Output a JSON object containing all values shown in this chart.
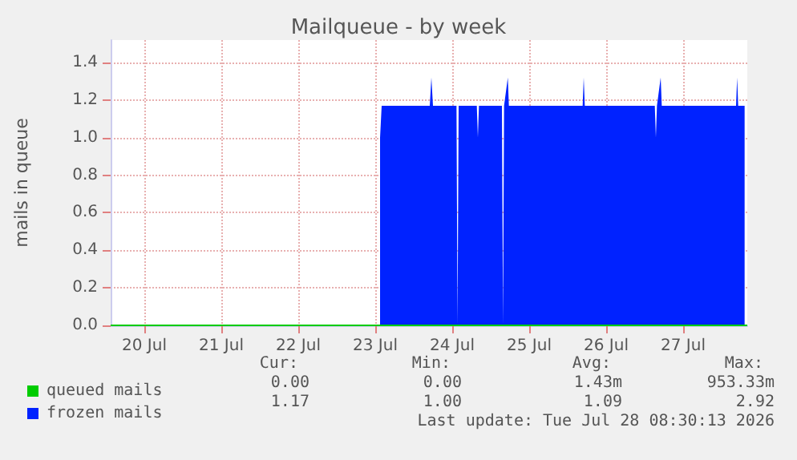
{
  "chart_data": {
    "type": "area",
    "title": "Mailqueue - by week",
    "ylabel": "mails in queue",
    "xlim": [
      "2026-07-19T13:30",
      "2026-07-27T20:00"
    ],
    "xticks": [
      {
        "value": "2026-07-20",
        "label": "20 Jul"
      },
      {
        "value": "2026-07-21",
        "label": "21 Jul"
      },
      {
        "value": "2026-07-22",
        "label": "22 Jul"
      },
      {
        "value": "2026-07-23",
        "label": "23 Jul"
      },
      {
        "value": "2026-07-24",
        "label": "24 Jul"
      },
      {
        "value": "2026-07-25",
        "label": "25 Jul"
      },
      {
        "value": "2026-07-26",
        "label": "26 Jul"
      },
      {
        "value": "2026-07-27",
        "label": "27 Jul"
      }
    ],
    "ylim": [
      0,
      1.52
    ],
    "yticks": [
      {
        "value": 0,
        "label": "0.0"
      },
      0.2,
      0.4,
      0.6,
      0.8,
      {
        "value": 1,
        "label": "1.0"
      },
      1.2,
      1.4
    ],
    "grid": true,
    "legend": "bottom left",
    "series": [
      {
        "name": "queued mails",
        "type": "line",
        "color": "#00cc00",
        "x": [
          "2026-07-19T13:30",
          "2026-07-27T20:00"
        ],
        "values": [
          0,
          0
        ]
      },
      {
        "name": "frozen mails",
        "color": "#0022ff",
        "x": [
          "2026-07-23T01:30",
          "2026-07-23T02:00",
          "2026-07-23T17:00",
          "2026-07-23T17:30",
          "2026-07-23T18:00",
          "2026-07-24T01:20",
          "2026-07-24T01:40",
          "2026-07-24T02:00",
          "2026-07-24T07:40",
          "2026-07-24T08:00",
          "2026-07-24T08:20",
          "2026-07-24T15:30",
          "2026-07-24T15:50",
          "2026-07-24T16:10",
          "2026-07-24T17:20",
          "2026-07-24T17:40",
          "2026-07-25T16:40",
          "2026-07-25T17:00",
          "2026-07-25T17:20",
          "2026-07-26T15:10",
          "2026-07-26T15:30",
          "2026-07-26T15:50",
          "2026-07-26T17:00",
          "2026-07-26T17:20",
          "2026-07-27T16:30",
          "2026-07-27T16:50",
          "2026-07-27T17:10",
          "2026-07-27T19:10"
        ],
        "values": [
          1.0,
          1.17,
          1.17,
          1.32,
          1.17,
          1.17,
          0,
          1.17,
          1.17,
          1.0,
          1.17,
          1.17,
          0,
          1.17,
          1.32,
          1.17,
          1.17,
          1.32,
          1.17,
          1.17,
          1.0,
          1.17,
          1.32,
          1.17,
          1.17,
          1.32,
          1.17,
          1.17
        ]
      }
    ],
    "annotations": [
      "Cur:",
      "Min:",
      "Avg:",
      "Max:",
      "0.00",
      "0.00",
      "1.43m",
      "953.33m",
      "1.17",
      "1.00",
      "1.09",
      "2.92",
      "Last update: Tue Jul 28 08:30:13 2026"
    ]
  }
}
